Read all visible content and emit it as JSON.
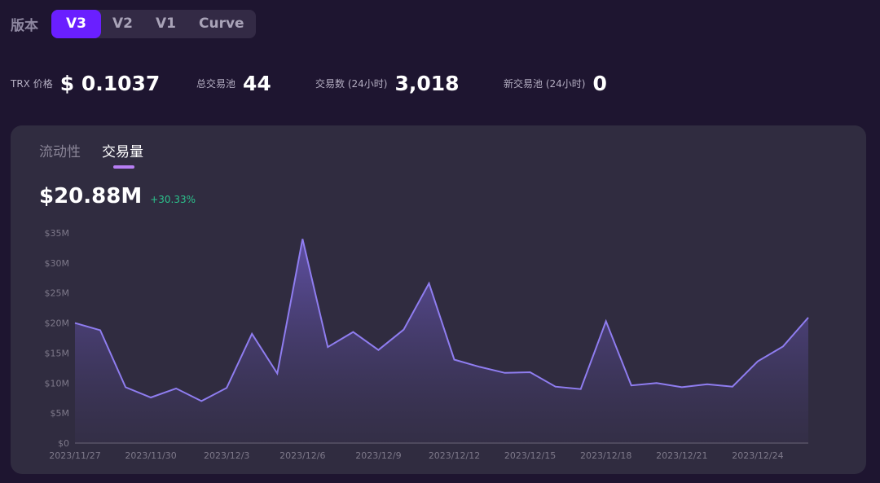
{
  "version": {
    "label": "版本",
    "tabs": [
      "V3",
      "V2",
      "V1",
      "Curve"
    ],
    "active": 0
  },
  "stats": [
    {
      "label": "TRX 价格",
      "value": "$ 0.1037"
    },
    {
      "label": "总交易池",
      "value": "44"
    },
    {
      "label": "交易数 (24小时)",
      "value": "3,018"
    },
    {
      "label": "新交易池 (24小时)",
      "value": "0"
    }
  ],
  "card": {
    "tabs": [
      "流动性",
      "交易量"
    ],
    "active_tab": 1,
    "headline_value": "$20.88M",
    "headline_change": "+30.33%"
  },
  "colors": {
    "accent": "#6a1fff",
    "line": "#8f7df0",
    "change_positive": "#2cc28c"
  },
  "chart_data": {
    "type": "area",
    "x": [
      "2023/11/27",
      "2023/11/28",
      "2023/11/29",
      "2023/11/30",
      "2023/12/1",
      "2023/12/2",
      "2023/12/3",
      "2023/12/4",
      "2023/12/5",
      "2023/12/6",
      "2023/12/7",
      "2023/12/8",
      "2023/12/9",
      "2023/12/10",
      "2023/12/11",
      "2023/12/12",
      "2023/12/13",
      "2023/12/14",
      "2023/12/15",
      "2023/12/16",
      "2023/12/17",
      "2023/12/18",
      "2023/12/19",
      "2023/12/20",
      "2023/12/21",
      "2023/12/22",
      "2023/12/23",
      "2023/12/24",
      "2023/12/25",
      "2023/12/26"
    ],
    "values": [
      20.0,
      18.8,
      9.3,
      7.6,
      9.1,
      7.0,
      9.2,
      18.2,
      11.6,
      34.0,
      16.0,
      18.5,
      15.5,
      18.9,
      26.6,
      13.9,
      12.7,
      11.7,
      11.8,
      9.4,
      9.0,
      20.3,
      9.6,
      10.0,
      9.3,
      9.8,
      9.4,
      13.6,
      16.1,
      20.9
    ],
    "x_tick_labels": [
      "2023/11/27",
      "2023/11/30",
      "2023/12/3",
      "2023/12/6",
      "2023/12/9",
      "2023/12/12",
      "2023/12/15",
      "2023/12/18",
      "2023/12/21",
      "2023/12/24"
    ],
    "y_tick_labels": [
      "$0",
      "$5M",
      "$10M",
      "$15M",
      "$20M",
      "$25M",
      "$30M",
      "$35M"
    ],
    "ylim": [
      0,
      35
    ],
    "grid": false,
    "legend": "none"
  }
}
